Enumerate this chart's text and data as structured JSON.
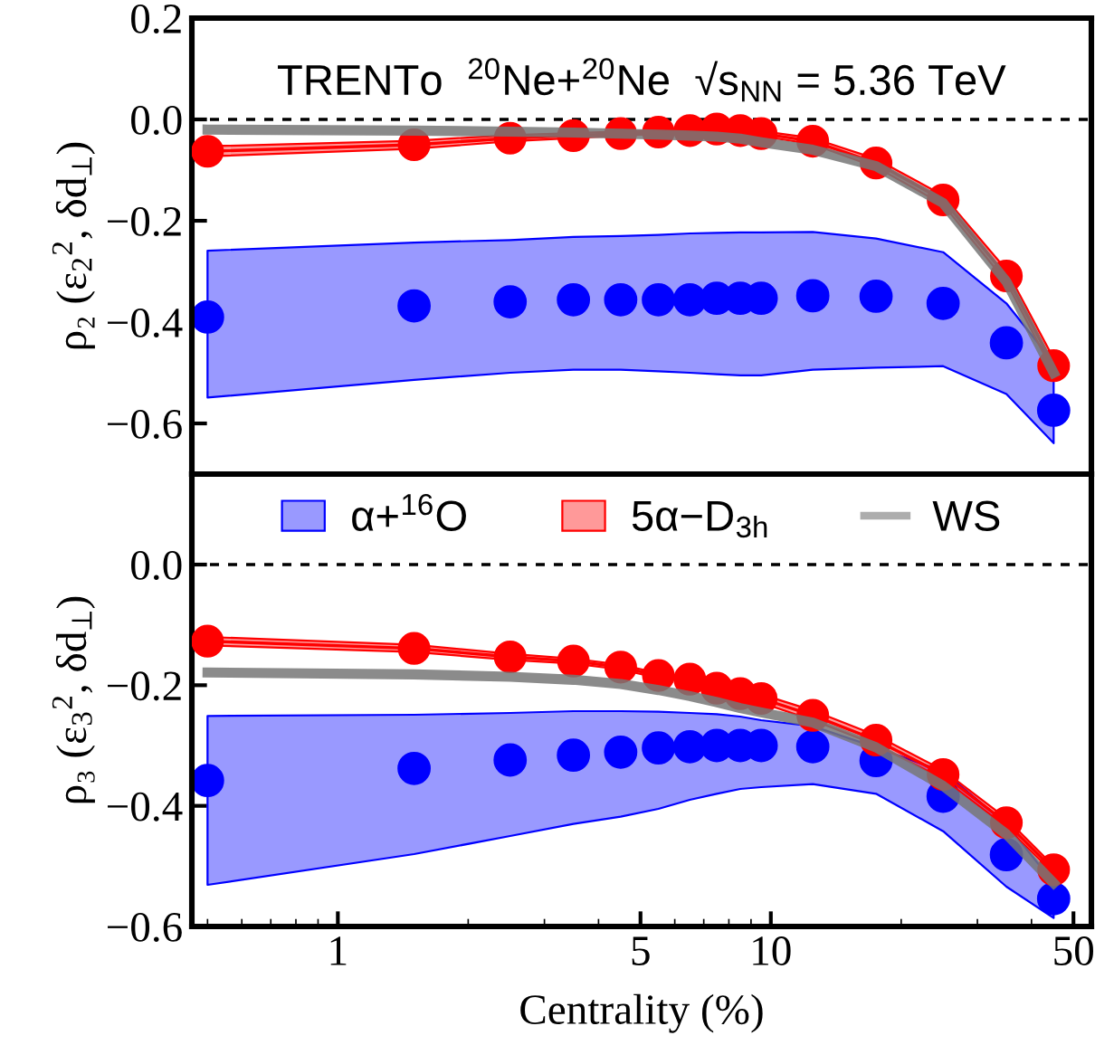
{
  "chart_data": [
    {
      "type": "line",
      "annotations": [
        "TRENTo  $^{20}$Ne+$^{20}$Ne  √s$_{NN}$ = 5.36 TeV"
      ],
      "ylabel": "ρ₂ (ε$_{2}$$^{2}$, δd$_{⊥}$)",
      "log": "x",
      "xlim": [
        0.46,
        55
      ],
      "xticks": [
        1,
        5,
        10,
        50
      ],
      "ylim": [
        -0.7,
        0.2
      ],
      "yticks": [
        {
          "value": 0.2,
          "label": "0.2"
        },
        {
          "value": 0.0,
          "label": "0.0"
        },
        {
          "value": -0.2,
          "label": "−0.2"
        },
        {
          "value": -0.4,
          "label": "−0.4"
        },
        {
          "value": -0.6,
          "label": "−0.6"
        }
      ],
      "tick_labels": "y",
      "legend": false,
      "grid": false,
      "ref_lines": [
        {
          "axis": "y",
          "value": 0,
          "color": "#000000",
          "line_style": "dashed"
        }
      ],
      "x": [
        0.5,
        1.5,
        2.5,
        3.5,
        4.5,
        5.5,
        6.5,
        7.5,
        8.5,
        9.5,
        12.5,
        17.5,
        25,
        35,
        45
      ],
      "series": [
        {
          "type": "scatter",
          "color": "#0000ff",
          "values": [
            -0.39,
            -0.368,
            -0.36,
            -0.356,
            -0.356,
            -0.356,
            -0.356,
            -0.353,
            -0.353,
            -0.353,
            -0.348,
            -0.349,
            -0.363,
            -0.441,
            -0.574
          ],
          "upper": [
            -0.259,
            -0.243,
            -0.238,
            -0.232,
            -0.23,
            -0.228,
            -0.225,
            -0.224,
            -0.223,
            -0.223,
            -0.222,
            -0.235,
            -0.262,
            -0.363,
            -0.48
          ],
          "lower": [
            -0.549,
            -0.514,
            -0.5,
            -0.494,
            -0.494,
            -0.497,
            -0.5,
            -0.503,
            -0.505,
            -0.505,
            -0.494,
            -0.49,
            -0.487,
            -0.542,
            -0.639
          ]
        },
        {
          "marker": "circle",
          "color": "#ff0000",
          "values": [
            -0.063,
            -0.05,
            -0.037,
            -0.032,
            -0.028,
            -0.025,
            -0.022,
            -0.019,
            -0.022,
            -0.028,
            -0.043,
            -0.086,
            -0.159,
            -0.309,
            -0.486
          ],
          "upper": [
            -0.053,
            -0.042,
            -0.031,
            -0.027,
            -0.024,
            -0.021,
            -0.018,
            -0.016,
            -0.018,
            -0.023,
            -0.037,
            -0.078,
            -0.15,
            -0.297,
            -0.472
          ],
          "lower": [
            -0.073,
            -0.058,
            -0.043,
            -0.037,
            -0.032,
            -0.029,
            -0.026,
            -0.023,
            -0.026,
            -0.033,
            -0.049,
            -0.094,
            -0.168,
            -0.321,
            -0.5
          ]
        },
        {
          "color": "#777777",
          "values": [
            -0.02,
            -0.022,
            -0.024,
            -0.026,
            -0.028,
            -0.03,
            -0.032,
            -0.034,
            -0.038,
            -0.045,
            -0.06,
            -0.092,
            -0.165,
            -0.32,
            -0.5
          ]
        }
      ]
    },
    {
      "type": "line",
      "xlabel": "Centrality (%)",
      "ylabel": "ρ₃ (ε$_{3}$$^{2}$, δd$_{⊥}$)",
      "log": "x",
      "xlim": [
        0.46,
        55
      ],
      "xticks": [
        1,
        5,
        10,
        50
      ],
      "ylim": [
        -0.6,
        0.15
      ],
      "yticks": [
        {
          "value": 0.0,
          "label": "0.0"
        },
        {
          "value": -0.2,
          "label": "−0.2"
        },
        {
          "value": -0.4,
          "label": "−0.4"
        },
        {
          "value": -0.6,
          "label": "−0.6"
        }
      ],
      "legend": "top",
      "grid": false,
      "ref_lines": [
        {
          "axis": "y",
          "value": 0,
          "color": "#000000",
          "line_style": "dashed"
        }
      ],
      "x": [
        0.5,
        1.5,
        2.5,
        3.5,
        4.5,
        5.5,
        6.5,
        7.5,
        8.5,
        9.5,
        12.5,
        17.5,
        25,
        35,
        45
      ],
      "series": [
        {
          "type": "scatter",
          "name": "α+$^{16}$O",
          "color": "#0000ff",
          "values": [
            -0.358,
            -0.338,
            -0.324,
            -0.316,
            -0.311,
            -0.304,
            -0.302,
            -0.3,
            -0.3,
            -0.3,
            -0.302,
            -0.325,
            -0.384,
            -0.481,
            -0.554
          ],
          "upper": [
            -0.251,
            -0.249,
            -0.246,
            -0.243,
            -0.243,
            -0.244,
            -0.246,
            -0.248,
            -0.252,
            -0.258,
            -0.268,
            -0.303,
            -0.343,
            -0.43,
            -0.528
          ],
          "lower": [
            -0.531,
            -0.48,
            -0.45,
            -0.43,
            -0.418,
            -0.405,
            -0.39,
            -0.38,
            -0.372,
            -0.369,
            -0.364,
            -0.38,
            -0.442,
            -0.534,
            -0.586
          ]
        },
        {
          "name": "5α−D$_{3h}$",
          "marker": "circle",
          "color": "#ff0000",
          "values": [
            -0.127,
            -0.139,
            -0.153,
            -0.16,
            -0.17,
            -0.184,
            -0.19,
            -0.205,
            -0.214,
            -0.222,
            -0.25,
            -0.291,
            -0.348,
            -0.428,
            -0.506
          ],
          "upper": [
            -0.12,
            -0.133,
            -0.148,
            -0.156,
            -0.166,
            -0.18,
            -0.186,
            -0.2,
            -0.208,
            -0.215,
            -0.242,
            -0.283,
            -0.341,
            -0.421,
            -0.5
          ],
          "lower": [
            -0.134,
            -0.145,
            -0.158,
            -0.164,
            -0.174,
            -0.188,
            -0.194,
            -0.21,
            -0.22,
            -0.229,
            -0.258,
            -0.299,
            -0.355,
            -0.435,
            -0.512
          ]
        },
        {
          "name": "WS",
          "color": "#777777",
          "values": [
            -0.179,
            -0.182,
            -0.186,
            -0.191,
            -0.198,
            -0.208,
            -0.218,
            -0.228,
            -0.238,
            -0.245,
            -0.262,
            -0.303,
            -0.367,
            -0.447,
            -0.528
          ]
        }
      ]
    }
  ]
}
